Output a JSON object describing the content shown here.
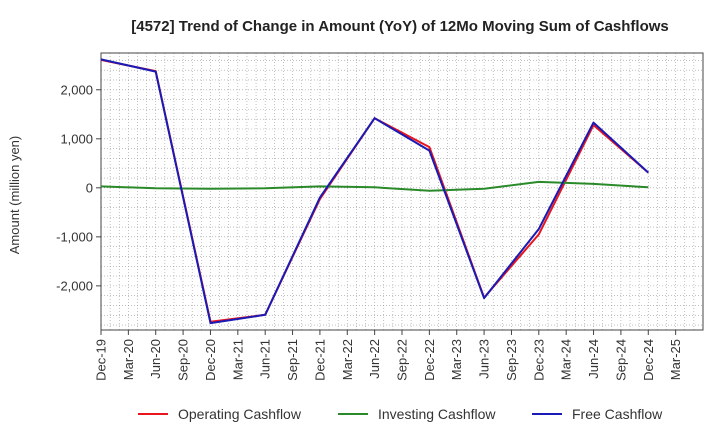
{
  "chart_data": {
    "type": "line",
    "title": "[4572]  Trend of Change in Amount (YoY) of 12Mo Moving Sum of Cashflows",
    "xlabel": "",
    "ylabel": "Amount (million yen)",
    "ylim": [
      -2900,
      2750
    ],
    "yticks": [
      -2000,
      -1000,
      0,
      1000,
      2000
    ],
    "ytick_labels": [
      "-2,000",
      "-1,000",
      "0",
      "1,000",
      "2,000"
    ],
    "categories": [
      "Dec-19",
      "Mar-20",
      "Jun-20",
      "Sep-20",
      "Dec-20",
      "Mar-21",
      "Jun-21",
      "Sep-21",
      "Dec-21",
      "Mar-22",
      "Jun-22",
      "Sep-22",
      "Dec-22",
      "Mar-23",
      "Jun-23",
      "Sep-23",
      "Dec-23",
      "Mar-24",
      "Jun-24",
      "Sep-24",
      "Dec-24",
      "Mar-25"
    ],
    "grid": true,
    "legend_position": "bottom",
    "series": [
      {
        "name": "Operating Cashflow",
        "color": "#e8141e",
        "values": [
          2610,
          null,
          2380,
          null,
          -2730,
          null,
          -2590,
          null,
          -230,
          null,
          1420,
          null,
          830,
          null,
          -2240,
          null,
          -950,
          null,
          1280,
          null,
          310,
          null
        ]
      },
      {
        "name": "Investing Cashflow",
        "color": "#2a8a2a",
        "values": [
          30,
          null,
          -10,
          null,
          -20,
          null,
          -10,
          null,
          30,
          null,
          10,
          null,
          -60,
          null,
          -20,
          null,
          120,
          null,
          80,
          null,
          10,
          null
        ]
      },
      {
        "name": "Free Cashflow",
        "color": "#1a1ab4",
        "values": [
          2620,
          null,
          2370,
          null,
          -2760,
          null,
          -2590,
          null,
          -200,
          null,
          1420,
          null,
          760,
          null,
          -2250,
          null,
          -840,
          null,
          1330,
          null,
          310,
          null
        ]
      }
    ]
  }
}
